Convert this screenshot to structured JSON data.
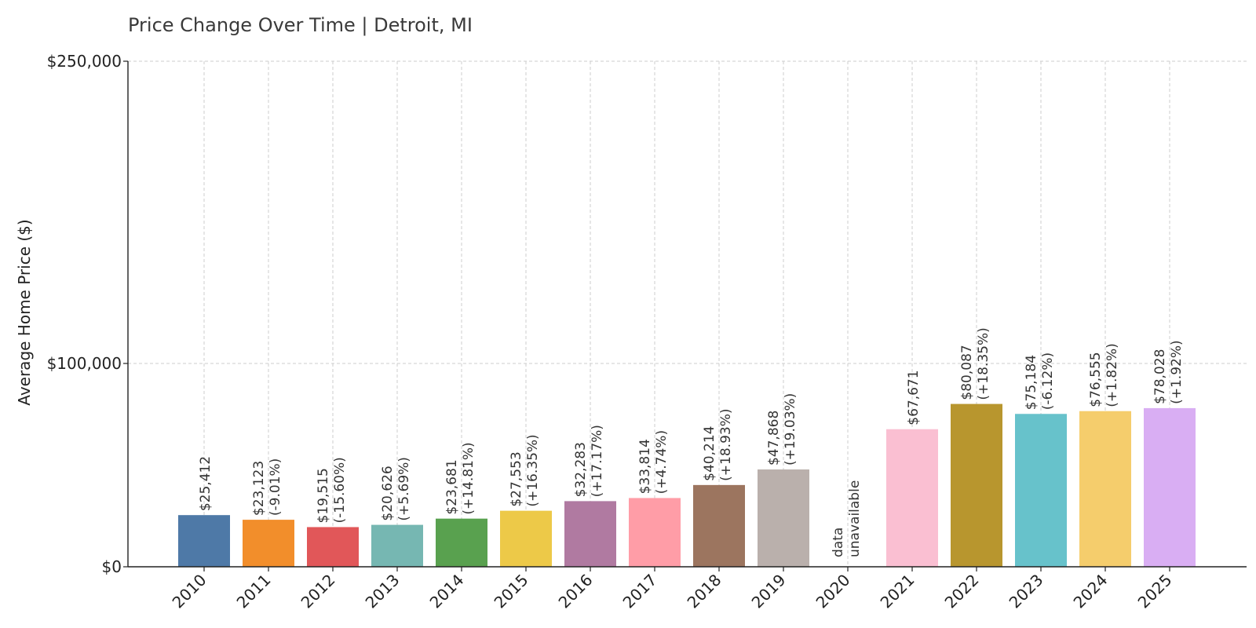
{
  "chart_data": {
    "type": "bar",
    "title": "Price Change Over Time | Detroit, MI",
    "xlabel": "",
    "ylabel": "Average Home Price ($)",
    "ylim": [
      0,
      250000
    ],
    "yticks": [
      {
        "value": 0,
        "label": "$0"
      },
      {
        "value": 100000,
        "label": "$100,000"
      },
      {
        "value": 250000,
        "label": "$250,000"
      }
    ],
    "y_scale": "custom: 0→100,000 occupies ~2/5 of the axis height, 100,000→250,000 ~3/5",
    "grid": true,
    "categories": [
      "2010",
      "2011",
      "2012",
      "2013",
      "2014",
      "2015",
      "2016",
      "2017",
      "2018",
      "2019",
      "2020",
      "2021",
      "2022",
      "2023",
      "2024",
      "2025"
    ],
    "values": [
      25412,
      23123,
      19515,
      20626,
      23681,
      27553,
      32283,
      33814,
      40214,
      47868,
      null,
      67671,
      80087,
      75184,
      76555,
      78028
    ],
    "value_labels": [
      "$25,412",
      "$23,123",
      "$19,515",
      "$20,626",
      "$23,681",
      "$27,553",
      "$32,283",
      "$33,814",
      "$40,214",
      "$47,868",
      "",
      "$67,671",
      "$80,087",
      "$75,184",
      "$76,555",
      "$78,028"
    ],
    "change_labels": [
      "",
      "(-9.01%)",
      "(-15.60%)",
      "(+5.69%)",
      "(+14.81%)",
      "(+16.35%)",
      "(+17.17%)",
      "(+4.74%)",
      "(+18.93%)",
      "(+19.03%)",
      "",
      "",
      "(+18.35%)",
      "(-6.12%)",
      "(+1.82%)",
      "(+1.92%)"
    ],
    "missing_label_lines": [
      "data",
      "unavailable"
    ],
    "colors": [
      "#4e79a7",
      "#f28e2b",
      "#e15759",
      "#76b7b2",
      "#59a14f",
      "#edc948",
      "#b07aa1",
      "#ff9da7",
      "#9c755f",
      "#bab0ac",
      "#ffffff",
      "#fabfd2",
      "#b8962e",
      "#67c2cb",
      "#f5cd6c",
      "#d9aef3"
    ]
  }
}
